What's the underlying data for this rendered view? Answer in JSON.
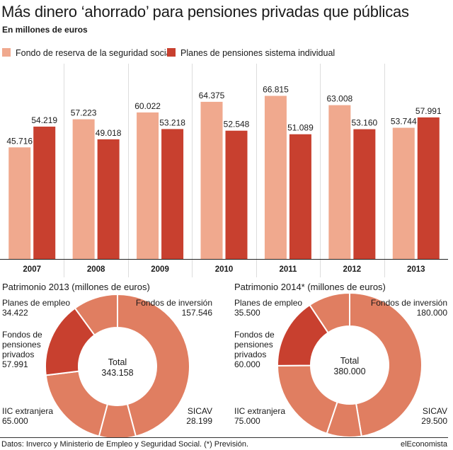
{
  "title": "Más dinero ‘ahorrado’ para pensiones privadas que públicas",
  "subtitle": "En millones de euros",
  "chart_data": [
    {
      "type": "bar",
      "categories": [
        "2007",
        "2008",
        "2009",
        "2010",
        "2011",
        "2012",
        "2013"
      ],
      "series": [
        {
          "name": "Fondo de reserva de la seguridad social",
          "values": [
            45.716,
            57.223,
            60.022,
            64.375,
            66.815,
            63.008,
            53.744
          ],
          "labels": [
            "45.716",
            "57.223",
            "60.022",
            "64.375",
            "66.815",
            "63.008",
            "53.744"
          ],
          "color": "#f0a98e"
        },
        {
          "name": "Planes de pensiones sistema individual",
          "values": [
            54.219,
            49.018,
            53.218,
            52.548,
            51.089,
            53.16,
            57.991
          ],
          "labels": [
            "54.219",
            "49.018",
            "53.218",
            "52.548",
            "51.089",
            "53.160",
            "57.991"
          ],
          "color": "#c8402f"
        }
      ],
      "ylim": [
        0,
        80
      ],
      "grid": false
    },
    {
      "type": "pie",
      "title": "Patrimonio 2013 (millones de euros)",
      "center_label": "Total",
      "center_value": "343.158",
      "slices": [
        {
          "name": "Fondos de inversión",
          "value": 157.546,
          "label": "157.546",
          "color": "#e07e61"
        },
        {
          "name": "SICAV",
          "value": 28.199,
          "label": "28.199",
          "color": "#e07e61"
        },
        {
          "name": "IIC extranjera",
          "value": 65.0,
          "label": "65.000",
          "color": "#e07e61"
        },
        {
          "name": "Fondos de pensiones privados",
          "value": 57.991,
          "label": "57.991",
          "color": "#c8402f"
        },
        {
          "name": "Planes de empleo",
          "value": 34.422,
          "label": "34.422",
          "color": "#e07e61"
        }
      ]
    },
    {
      "type": "pie",
      "title": "Patrimonio 2014* (millones de euros)",
      "center_label": "Total",
      "center_value": "380.000",
      "slices": [
        {
          "name": "Fondos de inversión",
          "value": 180.0,
          "label": "180.000",
          "color": "#e07e61"
        },
        {
          "name": "SICAV",
          "value": 29.5,
          "label": "29.500",
          "color": "#e07e61"
        },
        {
          "name": "IIC extranjera",
          "value": 75.0,
          "label": "75.000",
          "color": "#e07e61"
        },
        {
          "name": "Fondos de pensiones privados",
          "value": 60.0,
          "label": "60.000",
          "color": "#c8402f"
        },
        {
          "name": "Planes de empleo",
          "value": 35.5,
          "label": "35.500",
          "color": "#e07e61"
        }
      ]
    }
  ],
  "labels": {
    "planes_empleo": "Planes de empleo",
    "fondos_inversion": "Fondos de inversión",
    "fondos_pensiones_l1": "Fondos de",
    "fondos_pensiones_l2": "pensiones",
    "fondos_pensiones_l3": "privados",
    "iic": "IIC extranjera",
    "sicav": "SICAV"
  },
  "source": "Datos: Inverco y Ministerio de Empleo y Seguridad Social. (*) Previsión.",
  "brand": "elEconomista"
}
